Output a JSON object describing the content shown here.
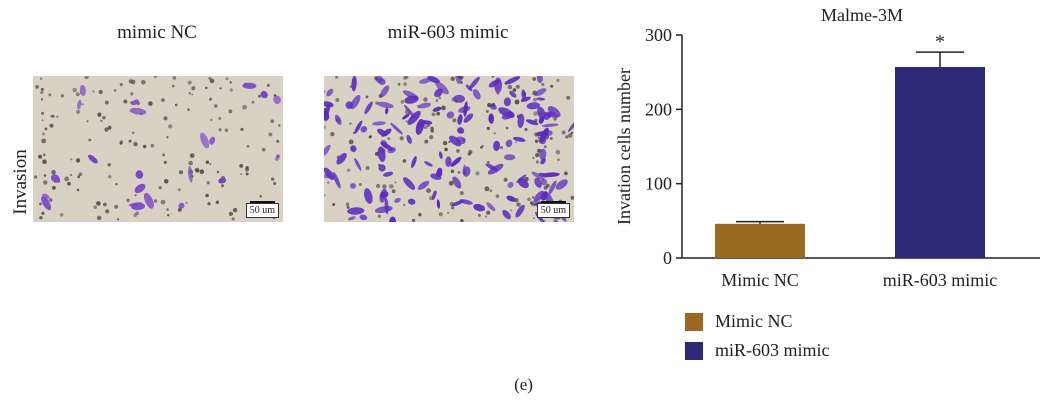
{
  "figure": {
    "row_label": "Invasion",
    "panels": [
      {
        "title": "mimic NC",
        "scale_label": "50 um",
        "stain_color": "#7b44c8",
        "cell_density": "low"
      },
      {
        "title": "miR-603 mimic",
        "scale_label": "50 um",
        "stain_color": "#5b2bc0",
        "cell_density": "high"
      }
    ],
    "caption": "(e)"
  },
  "chart_data": {
    "type": "bar",
    "title": "Malme-3M",
    "ylabel": "Invation cells number",
    "xlabel": "",
    "categories": [
      "Mimic NC",
      "miR-603 mimic"
    ],
    "values": [
      46,
      257
    ],
    "errors": [
      3,
      20
    ],
    "colors": [
      "#9a6a22",
      "#2d2a78"
    ],
    "ylim": [
      0,
      300
    ],
    "yticks": [
      0,
      100,
      200,
      300
    ],
    "annotations": [
      {
        "category": "miR-603 mimic",
        "text": "*"
      }
    ],
    "legend": {
      "position": "bottom-left",
      "entries": [
        "Mimic NC",
        "miR-603 mimic"
      ]
    },
    "grid": false
  }
}
